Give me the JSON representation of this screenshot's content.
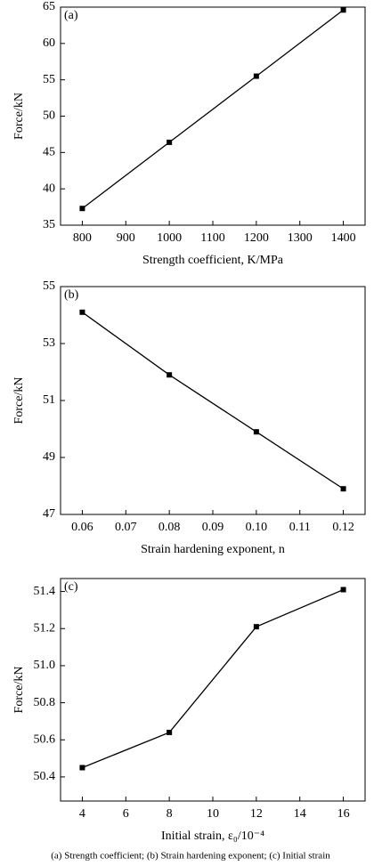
{
  "chart_data": [
    {
      "type": "line",
      "annotation": "(a)",
      "xlabel": "Strength coefficient, K/MPa",
      "ylabel": "Force/kN",
      "x": [
        800,
        1000,
        1200,
        1400
      ],
      "values": [
        37.3,
        46.4,
        55.5,
        64.6
      ],
      "color": "#000000",
      "xlim": [
        750,
        1450
      ],
      "ylim": [
        35,
        65
      ],
      "xticks": [
        800,
        900,
        1000,
        1100,
        1200,
        1300,
        1400
      ],
      "yticks": [
        35,
        40,
        45,
        50,
        55,
        60,
        65
      ]
    },
    {
      "type": "line",
      "annotation": "(b)",
      "xlabel": "Strain hardening exponent, n",
      "ylabel": "Force/kN",
      "x": [
        0.06,
        0.08,
        0.1,
        0.12
      ],
      "values": [
        54.1,
        51.9,
        49.9,
        47.9
      ],
      "color": "#000000",
      "xlim": [
        0.055,
        0.125
      ],
      "ylim": [
        47,
        55
      ],
      "xticks": [
        0.06,
        0.07,
        0.08,
        0.09,
        {
          "value": 0.1,
          "label": "0.10"
        },
        0.11,
        0.12
      ],
      "yticks": [
        47,
        49,
        51,
        53,
        55
      ]
    },
    {
      "type": "line",
      "annotation": "(c)",
      "xlabel": "Initial strain, ε₀/10⁻⁴",
      "ylabel": "Force/kN",
      "x": [
        4,
        8,
        12,
        16
      ],
      "values": [
        50.45,
        50.64,
        51.21,
        51.41
      ],
      "color": "#000000",
      "xlim": [
        3,
        17
      ],
      "ylim": [
        50.27,
        51.47
      ],
      "xticks": [
        4,
        6,
        8,
        10,
        12,
        14,
        16
      ],
      "yticks": [
        50.4,
        50.6,
        50.8,
        {
          "value": 51.0,
          "label": "51.0"
        },
        51.2,
        51.4
      ]
    }
  ],
  "caption": "(a) Strength coefficient; (b) Strain hardening exponent; (c) Initial strain"
}
